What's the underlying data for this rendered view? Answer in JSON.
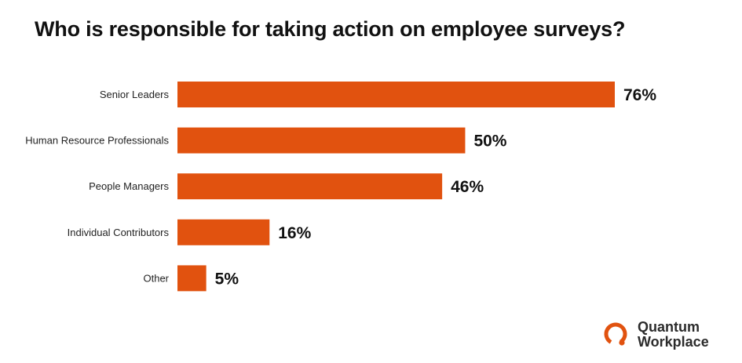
{
  "chart_data": {
    "type": "bar",
    "orientation": "horizontal",
    "title": "Who is responsible for taking action on employee surveys?",
    "categories": [
      "Senior Leaders",
      "Human Resource Professionals",
      "People Managers",
      "Individual Contributors",
      "Other"
    ],
    "values": [
      76,
      50,
      46,
      16,
      5
    ],
    "value_labels": [
      "76%",
      "50%",
      "46%",
      "16%",
      "5%"
    ],
    "unit": "%",
    "xlim": [
      0,
      76
    ],
    "grid": false,
    "bar_color": "#E1520F"
  },
  "logo": {
    "line1": "Quantum",
    "line2": "Workplace",
    "color": "#E1520F"
  }
}
